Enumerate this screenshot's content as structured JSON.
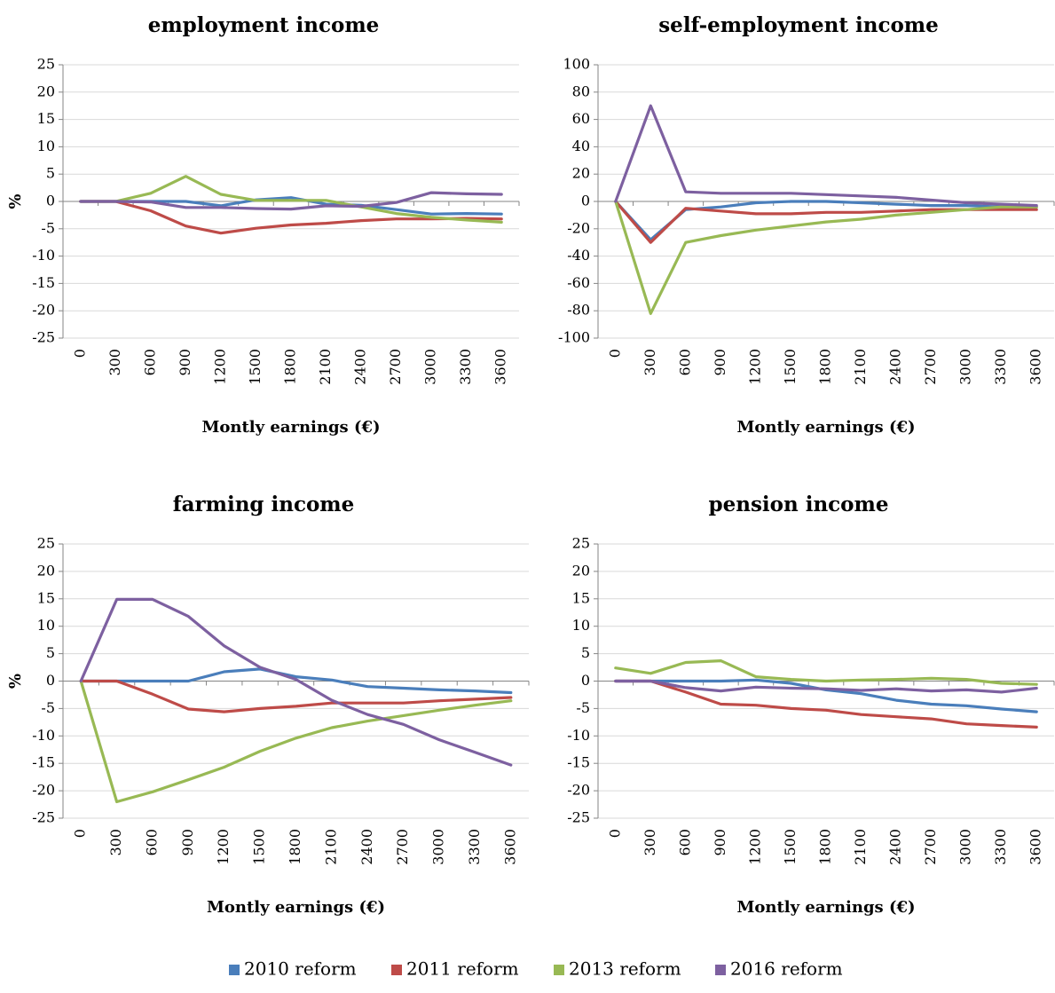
{
  "chart_data": [
    {
      "type": "line",
      "title": "employment income",
      "xlabel": "Montly earnings (€)",
      "ylabel": "%",
      "x": [
        0,
        300,
        600,
        900,
        1200,
        1500,
        1800,
        2100,
        2400,
        2700,
        3000,
        3300,
        3600
      ],
      "ylim": [
        -25,
        25
      ],
      "yticks": [
        25,
        20,
        15,
        10,
        5,
        0,
        -5,
        -10,
        -15,
        -20,
        -25
      ],
      "series": [
        {
          "name": "2010 reform",
          "values": [
            0,
            0,
            0,
            0,
            -0.8,
            0.3,
            0.7,
            -0.5,
            -0.7,
            -1.5,
            -2.3,
            -2.2,
            -2.3
          ]
        },
        {
          "name": "2011 reform",
          "values": [
            0,
            0,
            -1.7,
            -4.5,
            -5.8,
            -4.9,
            -4.3,
            -4.0,
            -3.5,
            -3.2,
            -3.2,
            -3.1,
            -3.2
          ]
        },
        {
          "name": "2013 reform",
          "values": [
            0,
            0,
            1.5,
            4.6,
            1.3,
            0.2,
            0.2,
            0.2,
            -1.0,
            -2.2,
            -2.9,
            -3.4,
            -3.8
          ]
        },
        {
          "name": "2016 reform",
          "values": [
            0,
            0,
            -0.1,
            -1.1,
            -1.1,
            -1.3,
            -1.4,
            -0.8,
            -0.9,
            -0.2,
            1.6,
            1.4,
            1.3
          ]
        }
      ]
    },
    {
      "type": "line",
      "title": "self-employment income",
      "xlabel": "Montly earnings (€)",
      "ylabel": "",
      "x": [
        0,
        300,
        600,
        900,
        1200,
        1500,
        1800,
        2100,
        2400,
        2700,
        3000,
        3300,
        3600
      ],
      "ylim": [
        -100,
        100
      ],
      "yticks": [
        100,
        80,
        60,
        40,
        20,
        0,
        -20,
        -40,
        -60,
        -80,
        -100
      ],
      "series": [
        {
          "name": "2010 reform",
          "values": [
            0,
            -28,
            -6,
            -4,
            -1,
            0,
            0,
            -1,
            -2,
            -3,
            -3,
            -4,
            -4
          ]
        },
        {
          "name": "2011 reform",
          "values": [
            0,
            -30,
            -5,
            -7,
            -9,
            -9,
            -8,
            -8,
            -7,
            -6,
            -6,
            -6,
            -6
          ]
        },
        {
          "name": "2013 reform",
          "values": [
            0,
            -82,
            -30,
            -25,
            -21,
            -18,
            -15,
            -13,
            -10,
            -8,
            -6,
            -4,
            -4
          ]
        },
        {
          "name": "2016 reform",
          "values": [
            0,
            70,
            7,
            6,
            6,
            6,
            5,
            4,
            3,
            1,
            -1,
            -2,
            -3
          ]
        }
      ]
    },
    {
      "type": "line",
      "title": "farming income",
      "xlabel": "Montly earnings (€)",
      "ylabel": "%",
      "x": [
        0,
        300,
        600,
        900,
        1200,
        1500,
        1800,
        2100,
        2400,
        2700,
        3000,
        3300,
        3600
      ],
      "ylim": [
        -25,
        25
      ],
      "yticks": [
        25,
        20,
        15,
        10,
        5,
        0,
        -5,
        -10,
        -15,
        -20,
        -25
      ],
      "series": [
        {
          "name": "2010 reform",
          "values": [
            0,
            0,
            0,
            0,
            1.7,
            2.2,
            0.8,
            0.2,
            -1.0,
            -1.3,
            -1.6,
            -1.8,
            -2.1
          ]
        },
        {
          "name": "2011 reform",
          "values": [
            0,
            0,
            -2.4,
            -5.1,
            -5.6,
            -5.0,
            -4.6,
            -4.0,
            -4.0,
            -4.0,
            -3.6,
            -3.3,
            -3.0
          ]
        },
        {
          "name": "2013 reform",
          "values": [
            0,
            -22.0,
            -20.2,
            -18.0,
            -15.7,
            -12.8,
            -10.4,
            -8.5,
            -7.3,
            -6.3,
            -5.3,
            -4.4,
            -3.6
          ]
        },
        {
          "name": "2016 reform",
          "values": [
            0,
            14.9,
            14.9,
            11.8,
            6.4,
            2.5,
            0.3,
            -3.5,
            -6.1,
            -7.9,
            -10.7,
            -13.0,
            -15.3
          ]
        }
      ]
    },
    {
      "type": "line",
      "title": "pension income",
      "xlabel": "Montly earnings (€)",
      "ylabel": "",
      "x": [
        0,
        300,
        600,
        900,
        1200,
        1500,
        1800,
        2100,
        2400,
        2700,
        3000,
        3300,
        3600
      ],
      "ylim": [
        -25,
        25
      ],
      "yticks": [
        25,
        20,
        15,
        10,
        5,
        0,
        -5,
        -10,
        -15,
        -20,
        -25
      ],
      "series": [
        {
          "name": "2010 reform",
          "values": [
            0,
            0,
            0,
            0,
            0.2,
            -0.4,
            -1.6,
            -2.3,
            -3.5,
            -4.2,
            -4.5,
            -5.1,
            -5.6
          ]
        },
        {
          "name": "2011 reform",
          "values": [
            0,
            0,
            -2.0,
            -4.2,
            -4.4,
            -5.0,
            -5.3,
            -6.1,
            -6.5,
            -6.9,
            -7.8,
            -8.1,
            -8.4
          ]
        },
        {
          "name": "2013 reform",
          "values": [
            2.4,
            1.4,
            3.4,
            3.7,
            0.8,
            0.3,
            0,
            0.2,
            0.3,
            0.5,
            0.3,
            -0.4,
            -0.6
          ]
        },
        {
          "name": "2016 reform",
          "values": [
            0,
            0,
            -1.2,
            -1.8,
            -1.1,
            -1.3,
            -1.4,
            -1.7,
            -1.4,
            -1.8,
            -1.6,
            -2.0,
            -1.3
          ]
        }
      ]
    }
  ],
  "legend": {
    "placement": "bottom-center",
    "entries": [
      {
        "name": "2010 reform",
        "color": "#4a7ebb"
      },
      {
        "name": "2011 reform",
        "color": "#be4b48"
      },
      {
        "name": "2013 reform",
        "color": "#98b954"
      },
      {
        "name": "2016 reform",
        "color": "#7d60a0"
      }
    ]
  },
  "colors": {
    "2010 reform": "#4a7ebb",
    "2011 reform": "#be4b48",
    "2013 reform": "#98b954",
    "2016 reform": "#7d60a0",
    "grid": "#d9d9d9",
    "axis": "#868686"
  }
}
